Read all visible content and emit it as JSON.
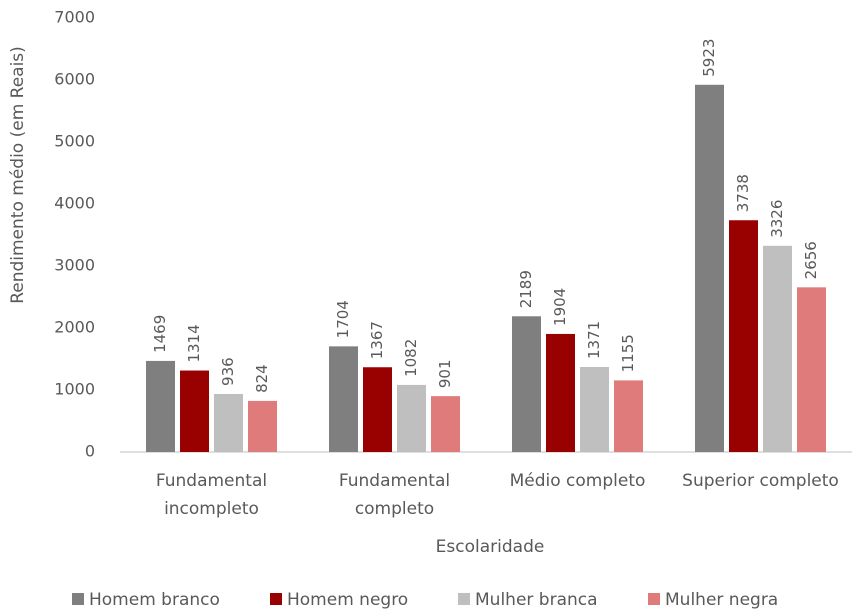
{
  "chart_data": {
    "type": "bar",
    "x_label": "Escolaridade",
    "y_label": "Rendimento médio (em Reais)",
    "categories": [
      [
        "Fundamental",
        "incompleto"
      ],
      [
        "Fundamental",
        "completo"
      ],
      [
        "Médio completo"
      ],
      [
        "Superior completo"
      ]
    ],
    "series": [
      {
        "name": "Homem branco",
        "color": "#7f7f7f",
        "values": [
          1469,
          1704,
          2189,
          5923
        ]
      },
      {
        "name": "Homem negro",
        "color": "#990000",
        "values": [
          1314,
          1367,
          1904,
          3738
        ]
      },
      {
        "name": "Mulher branca",
        "color": "#bfbfbf",
        "values": [
          936,
          1082,
          1371,
          3326
        ]
      },
      {
        "name": "Mulher negra",
        "color": "#e07b7b",
        "values": [
          824,
          901,
          1155,
          2656
        ]
      }
    ],
    "ylim": [
      0,
      7000
    ],
    "yticks": [
      0,
      1000,
      2000,
      3000,
      4000,
      5000,
      6000,
      7000
    ],
    "grid": false,
    "legend": "bottom"
  }
}
